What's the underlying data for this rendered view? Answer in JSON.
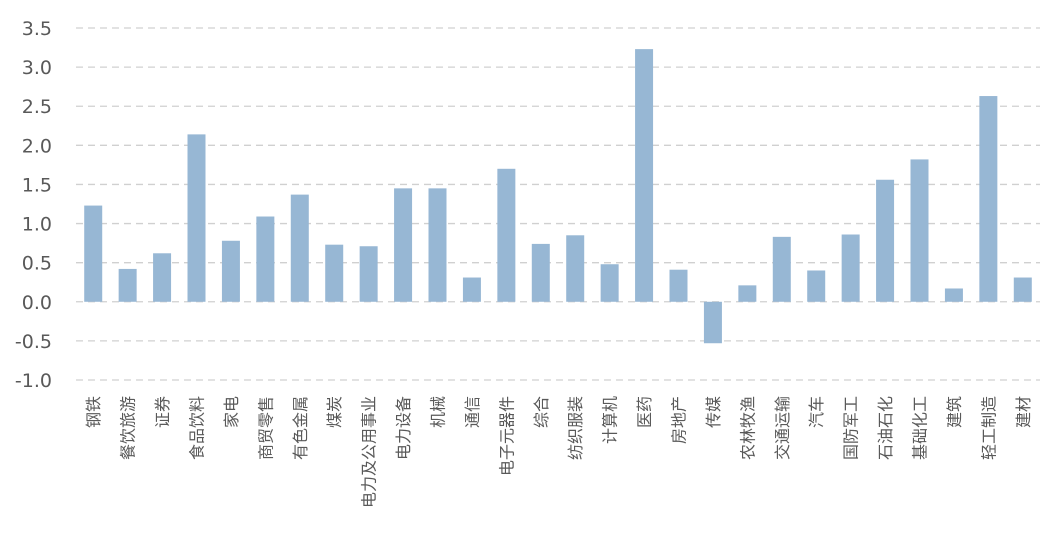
{
  "chart_data": {
    "type": "bar",
    "categories": [
      "钢铁",
      "餐饮旅游",
      "证券",
      "食品饮料",
      "家电",
      "商贸零售",
      "有色金属",
      "煤炭",
      "电力及公用事业",
      "电力设备",
      "机械",
      "通信",
      "电子元器件",
      "综合",
      "纺织服装",
      "计算机",
      "医药",
      "房地产",
      "传媒",
      "农林牧渔",
      "交通运输",
      "汽车",
      "国防军工",
      "石油石化",
      "基础化工",
      "建筑",
      "轻工制造",
      "建材"
    ],
    "values": [
      1.23,
      0.42,
      0.62,
      2.14,
      0.78,
      1.09,
      1.37,
      0.73,
      0.71,
      1.45,
      1.45,
      0.31,
      1.7,
      0.74,
      0.85,
      0.48,
      3.23,
      0.41,
      -0.53,
      0.21,
      0.83,
      0.4,
      0.86,
      1.56,
      1.82,
      0.17,
      2.63,
      0.31
    ],
    "yticks": [
      "3.5",
      "3.0",
      "2.5",
      "2.0",
      "1.5",
      "1.0",
      "0.5",
      "0.0",
      "-0.5",
      "-1.0"
    ],
    "ylim": [
      -1.0,
      3.5
    ],
    "grid": true,
    "color": "#97b7d4",
    "title": "",
    "xlabel": "",
    "ylabel": ""
  }
}
